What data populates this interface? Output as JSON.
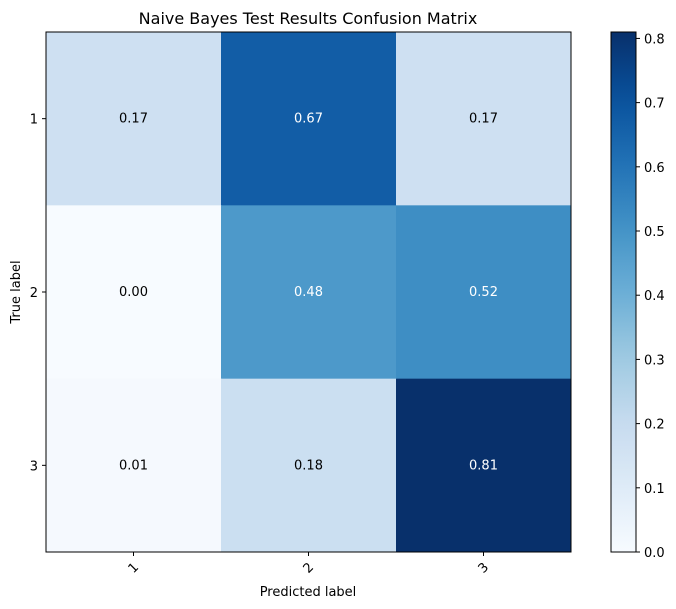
{
  "chart_data": {
    "type": "heatmap",
    "title": "Naive Bayes Test Results Confusion Matrix",
    "xlabel": "Predicted label",
    "ylabel": "True label",
    "x_categories": [
      "1",
      "2",
      "3"
    ],
    "y_categories": [
      "1",
      "2",
      "3"
    ],
    "values": [
      [
        0.17,
        0.67,
        0.17
      ],
      [
        0.0,
        0.48,
        0.52
      ],
      [
        0.01,
        0.18,
        0.81
      ]
    ],
    "cell_labels": [
      [
        "0.17",
        "0.67",
        "0.17"
      ],
      [
        "0.00",
        "0.48",
        "0.52"
      ],
      [
        "0.01",
        "0.18",
        "0.81"
      ]
    ],
    "colormap": "Blues",
    "color_range": [
      0,
      0.81
    ],
    "colorbar_ticks": [
      "0.0",
      "0.1",
      "0.2",
      "0.3",
      "0.4",
      "0.5",
      "0.6",
      "0.7",
      "0.8"
    ],
    "grid": false,
    "colors": {
      "low": "#f7fbff",
      "high": "#08306b"
    }
  }
}
